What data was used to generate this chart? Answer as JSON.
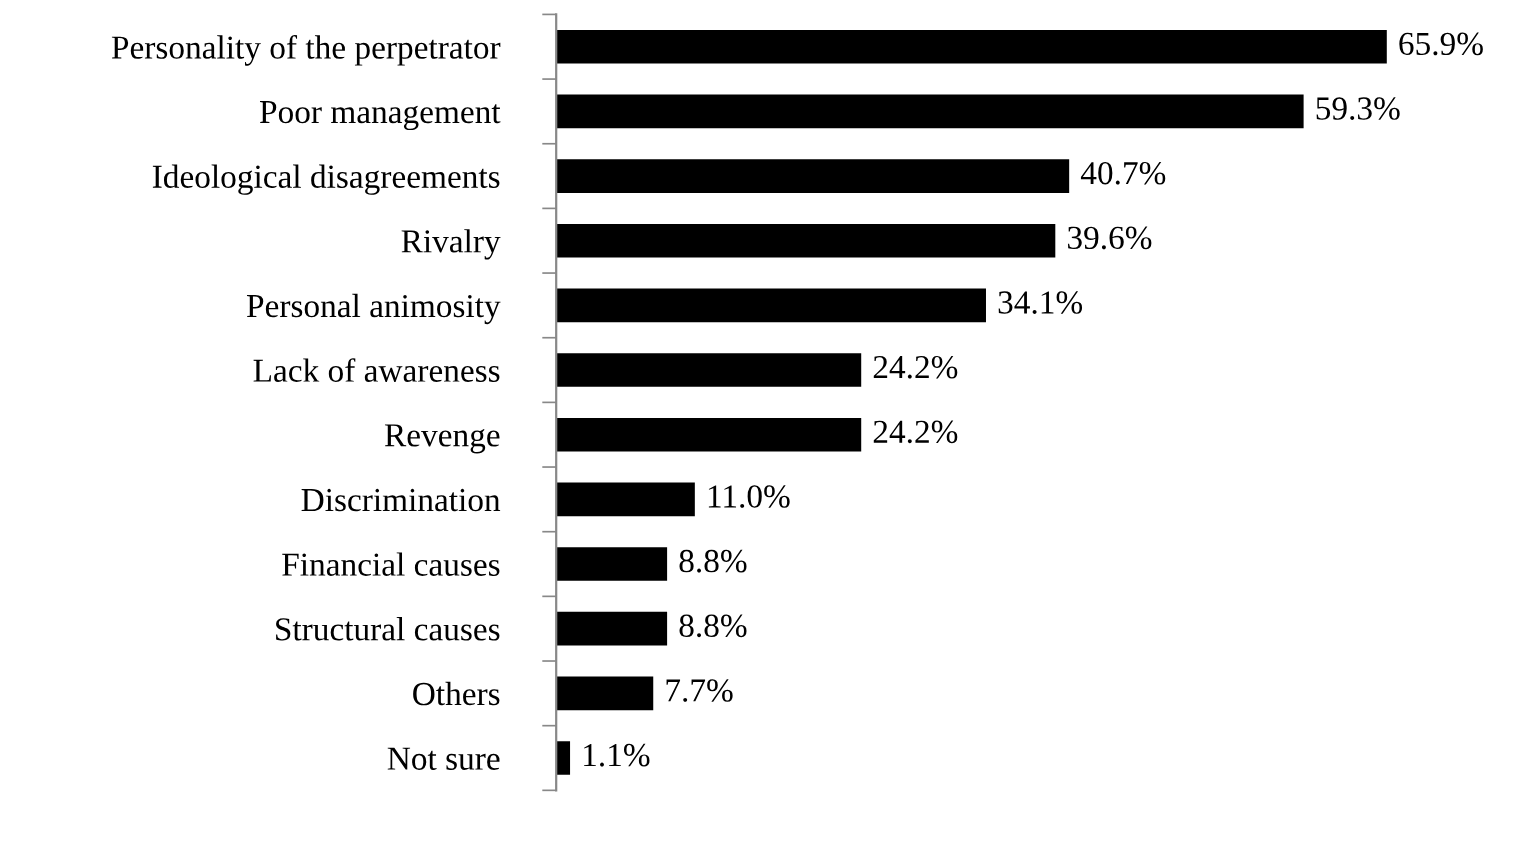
{
  "chart_data": {
    "type": "bar",
    "orientation": "horizontal",
    "categories": [
      "Personality of the perpetrator",
      "Poor management",
      "Ideological disagreements",
      "Rivalry",
      "Personal animosity",
      "Lack of awareness",
      "Revenge",
      "Discrimination",
      "Financial causes",
      "Structural causes",
      "Others",
      "Not sure"
    ],
    "values": [
      65.9,
      59.3,
      40.7,
      39.6,
      34.1,
      24.2,
      24.2,
      11.0,
      8.8,
      8.8,
      7.7,
      1.1
    ],
    "value_labels": [
      "65.9%",
      "59.3%",
      "40.7%",
      "39.6%",
      "34.1%",
      "24.2%",
      "24.2%",
      "11.0%",
      "8.8%",
      "8.8%",
      "7.7%",
      "1.1%"
    ],
    "color": "#000000",
    "grid": false,
    "legend": false
  }
}
